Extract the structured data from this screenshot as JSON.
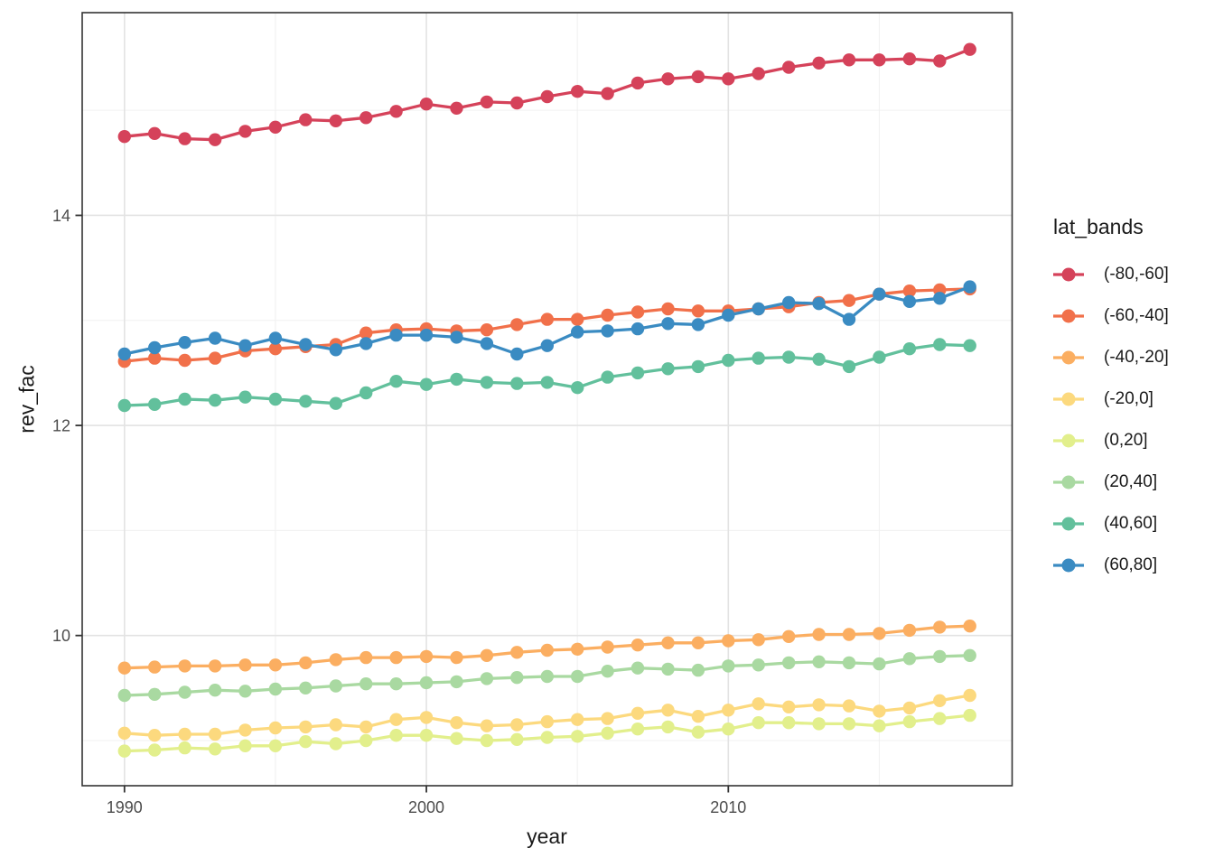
{
  "chart_data": {
    "type": "line",
    "title": "",
    "xlabel": "year",
    "ylabel": "rev_fac",
    "legend_title": "lat_bands",
    "legend_position": "right",
    "grid": true,
    "point_markers": true,
    "x": [
      1990,
      1991,
      1992,
      1993,
      1994,
      1995,
      1996,
      1997,
      1998,
      1999,
      2000,
      2001,
      2002,
      2003,
      2004,
      2005,
      2006,
      2007,
      2008,
      2009,
      2010,
      2011,
      2012,
      2013,
      2014,
      2015,
      2016,
      2017,
      2018
    ],
    "xlim": [
      1988.6,
      2019.4
    ],
    "ylim": [
      8.57,
      15.93
    ],
    "x_ticks": [
      1990,
      2000,
      2010
    ],
    "x_minor_ticks": [
      1995,
      2005,
      2015
    ],
    "y_ticks": [
      10,
      12,
      14
    ],
    "y_minor_ticks": [
      9,
      11,
      13,
      15
    ],
    "series": [
      {
        "name": "(-80,-60]",
        "color": "#D5425A",
        "values": [
          14.75,
          14.78,
          14.73,
          14.72,
          14.8,
          14.84,
          14.91,
          14.9,
          14.93,
          14.99,
          15.06,
          15.02,
          15.08,
          15.07,
          15.13,
          15.18,
          15.16,
          15.26,
          15.3,
          15.32,
          15.3,
          15.35,
          15.41,
          15.45,
          15.48,
          15.48,
          15.49,
          15.47,
          15.58
        ]
      },
      {
        "name": "(-60,-40]",
        "color": "#F1704A",
        "values": [
          12.61,
          12.64,
          12.62,
          12.64,
          12.71,
          12.73,
          12.75,
          12.77,
          12.88,
          12.91,
          12.92,
          12.9,
          12.91,
          12.96,
          13.01,
          13.01,
          13.05,
          13.08,
          13.11,
          13.09,
          13.09,
          13.11,
          13.13,
          13.17,
          13.19,
          13.25,
          13.28,
          13.29,
          13.3
        ]
      },
      {
        "name": "(-40,-20]",
        "color": "#FBAE61",
        "values": [
          9.69,
          9.7,
          9.71,
          9.71,
          9.72,
          9.72,
          9.74,
          9.77,
          9.79,
          9.79,
          9.8,
          9.79,
          9.81,
          9.84,
          9.86,
          9.87,
          9.89,
          9.91,
          9.93,
          9.93,
          9.95,
          9.96,
          9.99,
          10.01,
          10.01,
          10.02,
          10.05,
          10.08,
          10.09
        ]
      },
      {
        "name": "(-20,0]",
        "color": "#FCD97E",
        "values": [
          9.07,
          9.05,
          9.06,
          9.06,
          9.1,
          9.12,
          9.13,
          9.15,
          9.13,
          9.2,
          9.22,
          9.17,
          9.14,
          9.15,
          9.18,
          9.2,
          9.21,
          9.26,
          9.29,
          9.23,
          9.29,
          9.35,
          9.32,
          9.34,
          9.33,
          9.28,
          9.31,
          9.38,
          9.43
        ]
      },
      {
        "name": "(0,20]",
        "color": "#E2EF8C",
        "values": [
          8.9,
          8.91,
          8.93,
          8.92,
          8.95,
          8.95,
          8.99,
          8.97,
          9.0,
          9.05,
          9.05,
          9.02,
          9.0,
          9.01,
          9.03,
          9.04,
          9.07,
          9.11,
          9.13,
          9.08,
          9.11,
          9.17,
          9.17,
          9.16,
          9.16,
          9.14,
          9.18,
          9.21,
          9.24
        ]
      },
      {
        "name": "(20,40]",
        "color": "#A9D9A1",
        "values": [
          9.43,
          9.44,
          9.46,
          9.48,
          9.47,
          9.49,
          9.5,
          9.52,
          9.54,
          9.54,
          9.55,
          9.56,
          9.59,
          9.6,
          9.61,
          9.61,
          9.66,
          9.69,
          9.68,
          9.67,
          9.71,
          9.72,
          9.74,
          9.75,
          9.74,
          9.73,
          9.78,
          9.8,
          9.81
        ]
      },
      {
        "name": "(40,60]",
        "color": "#62C09C",
        "values": [
          12.19,
          12.2,
          12.25,
          12.24,
          12.27,
          12.25,
          12.23,
          12.21,
          12.31,
          12.42,
          12.39,
          12.44,
          12.41,
          12.4,
          12.41,
          12.36,
          12.46,
          12.5,
          12.54,
          12.56,
          12.62,
          12.64,
          12.65,
          12.63,
          12.56,
          12.65,
          12.73,
          12.77,
          12.76
        ]
      },
      {
        "name": "(60,80]",
        "color": "#3A8BC2",
        "values": [
          12.68,
          12.74,
          12.79,
          12.83,
          12.76,
          12.83,
          12.77,
          12.72,
          12.78,
          12.86,
          12.86,
          12.84,
          12.78,
          12.68,
          12.76,
          12.89,
          12.9,
          12.92,
          12.97,
          12.96,
          13.05,
          13.11,
          13.17,
          13.16,
          13.01,
          13.25,
          13.18,
          13.21,
          13.32
        ]
      }
    ],
    "style": {
      "panel_background": "#ffffff",
      "panel_border_color": "#333333",
      "grid_major_color": "#e3e3e3",
      "grid_minor_color": "#f0f0f0",
      "tick_color": "#333333",
      "tick_label_color": "#4d4d4d",
      "axis_title_color": "#1a1a1a"
    }
  }
}
